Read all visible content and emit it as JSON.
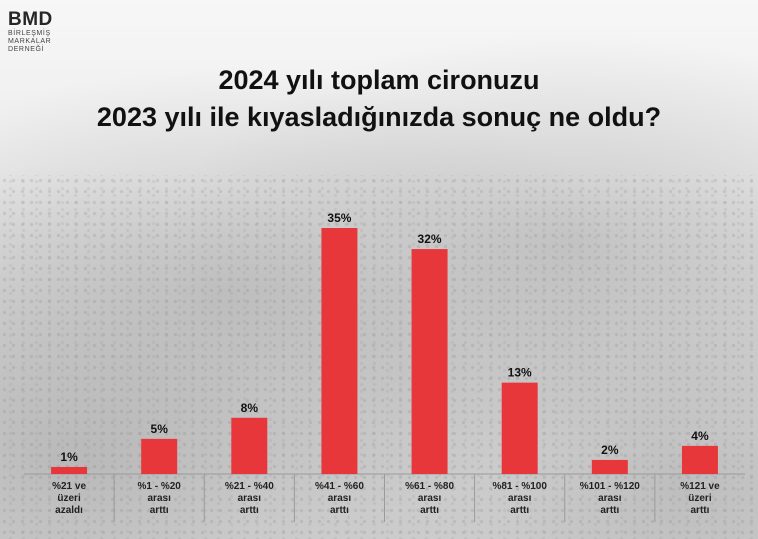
{
  "logo": {
    "mark": "BMD",
    "line1": "BİRLEŞMİŞ",
    "line2": "MARKALAR",
    "line3": "DERNEĞİ"
  },
  "chart_data": {
    "type": "bar",
    "title_line1": "2024 yılı toplam cironuzu",
    "title_line2": "2023 yılı ile kıyasladığınızda sonuç ne oldu?",
    "categories": [
      [
        "%21 ve",
        "üzeri",
        "azaldı"
      ],
      [
        "%1 - %20",
        "arası",
        "arttı"
      ],
      [
        "%21 - %40",
        "arası",
        "arttı"
      ],
      [
        "%41 - %60",
        "arası",
        "arttı"
      ],
      [
        "%61 - %80",
        "arası",
        "arttı"
      ],
      [
        "%81 - %100",
        "arası",
        "arttı"
      ],
      [
        "%101 - %120",
        "arası",
        "arttı"
      ],
      [
        "%121 ve",
        "üzeri",
        "arttı"
      ]
    ],
    "values": [
      1,
      5,
      8,
      35,
      32,
      13,
      2,
      4
    ],
    "value_labels": [
      "1%",
      "5%",
      "8%",
      "35%",
      "32%",
      "13%",
      "2%",
      "4%"
    ],
    "bar_color": "#e8373a",
    "ylim": [
      0,
      35
    ],
    "grid": false,
    "legend": "none"
  }
}
